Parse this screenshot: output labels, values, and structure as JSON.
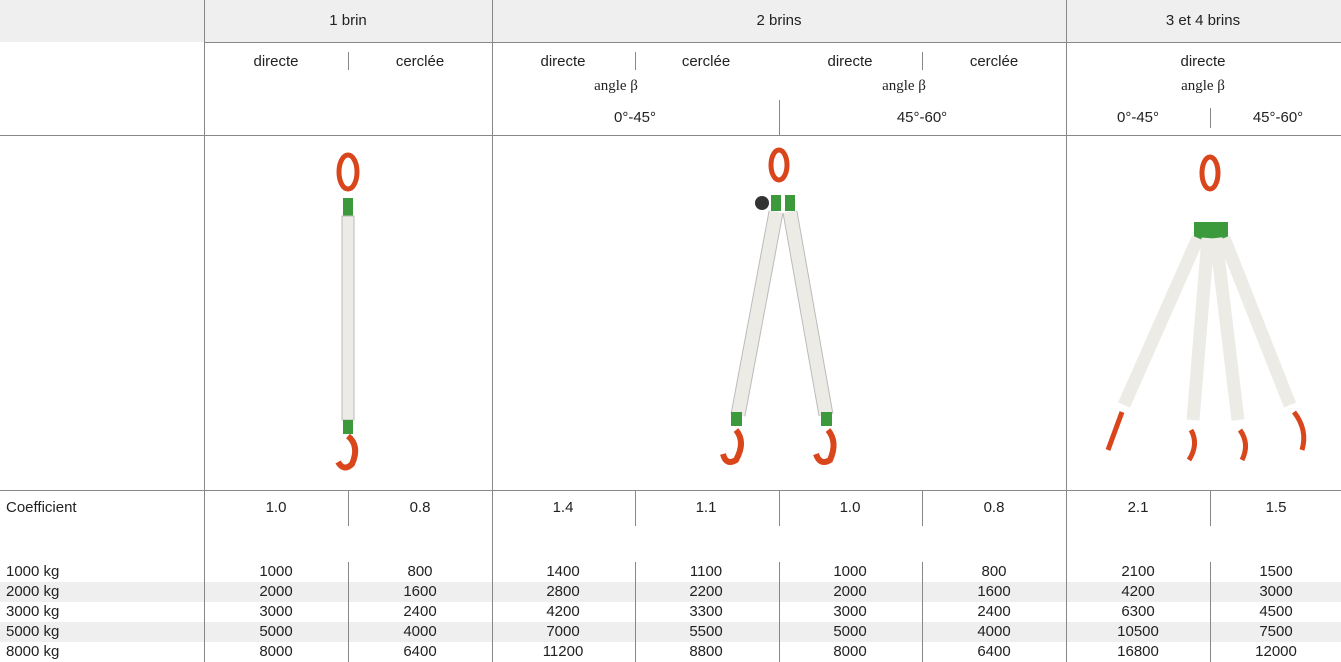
{
  "group_headers": [
    "1 brin",
    "2 brins",
    "3 et 4 brins"
  ],
  "sub_headers": {
    "one_brin": [
      "directe",
      "cerclée"
    ],
    "two_brins_a": [
      "directe",
      "cerclée"
    ],
    "two_brins_b": [
      "directe",
      "cerclée"
    ],
    "three_four_brins": "directe"
  },
  "angle_labels": [
    "angle β",
    "angle β",
    "angle β"
  ],
  "angle_ranges": [
    "0°-45°",
    "45°-60°",
    "0°-45°",
    "45°-60°"
  ],
  "coefficient": {
    "label": "Coefficient",
    "values": [
      "1.0",
      "0.8",
      "1.4",
      "1.1",
      "1.0",
      "0.8",
      "2.1",
      "1.5"
    ]
  },
  "rows": [
    {
      "label": "1000 kg",
      "values": [
        1000,
        800,
        1400,
        1100,
        1000,
        800,
        2100,
        1500
      ]
    },
    {
      "label": "2000 kg",
      "values": [
        2000,
        1600,
        2800,
        2200,
        2000,
        1600,
        4200,
        3000
      ]
    },
    {
      "label": "3000 kg",
      "values": [
        3000,
        2400,
        4200,
        3300,
        3000,
        2400,
        6300,
        4500
      ]
    },
    {
      "label": "5000 kg",
      "values": [
        5000,
        4000,
        7000,
        5500,
        5000,
        4000,
        10500,
        7500
      ]
    },
    {
      "label": "8000 kg",
      "values": [
        8000,
        6400,
        11200,
        8800,
        8000,
        6400,
        16800,
        12000
      ]
    }
  ]
}
